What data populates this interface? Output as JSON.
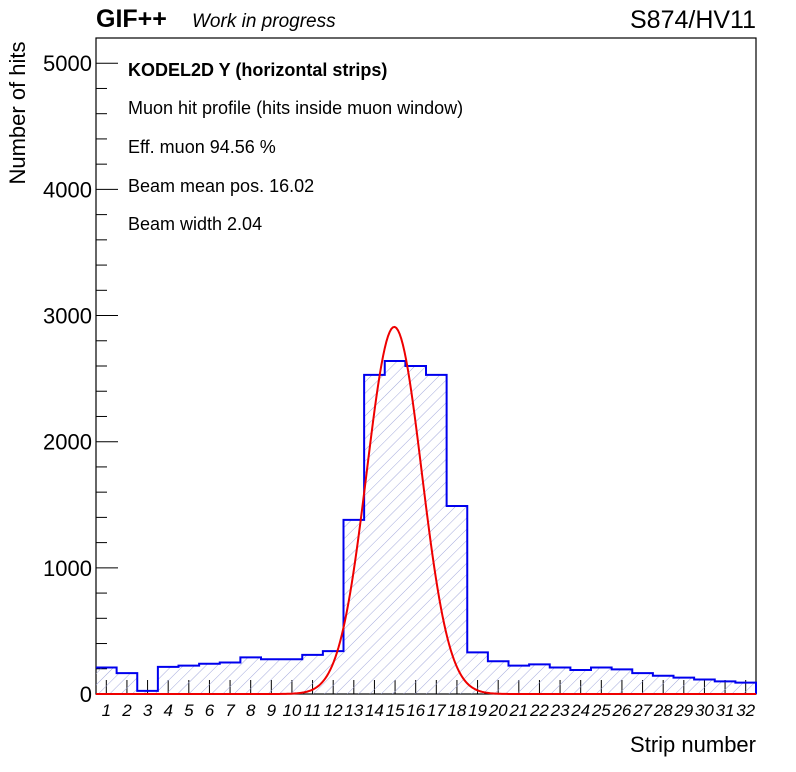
{
  "header": {
    "experiment": "GIF++",
    "status": "Work in progress",
    "run_label": "S874/HV11"
  },
  "annotations": [
    "KODEL2D Y (horizontal strips)",
    "Muon hit profile (hits inside muon window)",
    "Eff. muon 94.56 %",
    "Beam mean pos. 16.02",
    "Beam width 2.04"
  ],
  "chart_data": {
    "type": "histogram",
    "xlabel": "Strip number",
    "ylabel": "Number of hits",
    "ylim": [
      0,
      5200
    ],
    "yticks": [
      0,
      1000,
      2000,
      3000,
      4000,
      5000
    ],
    "categories": [
      "1",
      "2",
      "3",
      "4",
      "5",
      "6",
      "7",
      "8",
      "9",
      "10",
      "11",
      "12",
      "13",
      "14",
      "15",
      "16",
      "17",
      "18",
      "19",
      "20",
      "21",
      "22",
      "23",
      "24",
      "25",
      "26",
      "27",
      "28",
      "29",
      "30",
      "31",
      "32"
    ],
    "series": [
      {
        "values": [
          210,
          165,
          25,
          215,
          225,
          240,
          250,
          290,
          275,
          275,
          310,
          340,
          1380,
          2530,
          2640,
          2600,
          2530,
          1490,
          330,
          260,
          225,
          235,
          210,
          190,
          210,
          195,
          165,
          145,
          130,
          115,
          100,
          90
        ],
        "color": "#0000ee",
        "fill": "hatched"
      }
    ],
    "fit": {
      "type": "gaussian",
      "color": "#ee0000",
      "peak": 2910,
      "mean": 14.96,
      "sigma": 1.33
    },
    "grid": false
  }
}
